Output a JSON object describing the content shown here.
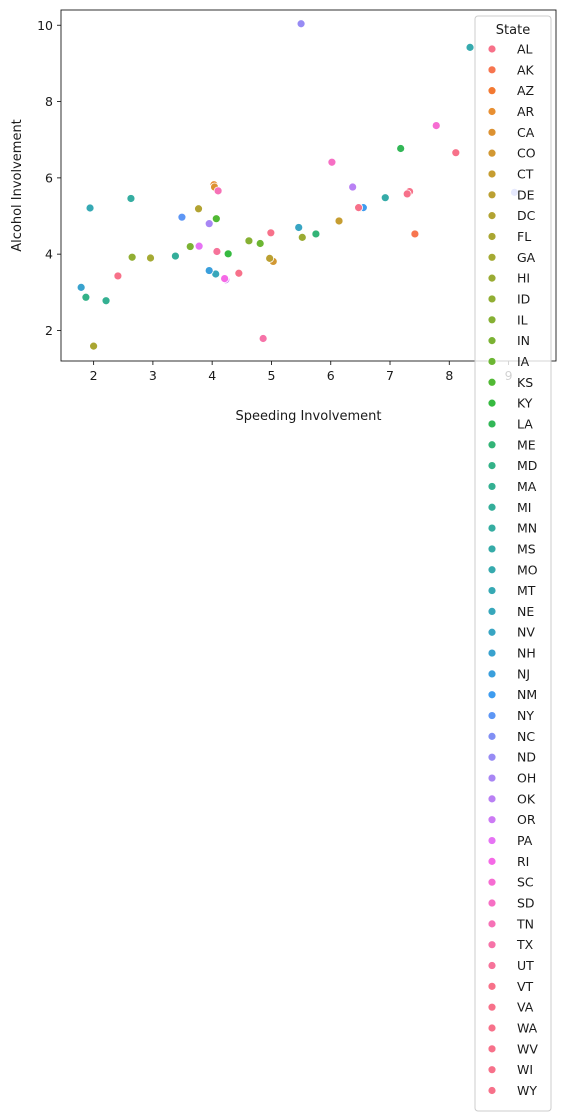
{
  "chart_data": {
    "type": "scatter",
    "title": "",
    "xlabel": "Speeding Involvement",
    "ylabel": "Alcohol Involvement",
    "xlim": [
      1.45,
      9.8
    ],
    "ylim": [
      1.2,
      10.4
    ],
    "x_ticks": [
      2,
      3,
      4,
      5,
      6,
      7,
      8,
      9
    ],
    "y_ticks": [
      2,
      4,
      6,
      8,
      10
    ],
    "grid": false,
    "legend": {
      "title": "State",
      "placement": "right",
      "entries": [
        "AL",
        "AK",
        "AZ",
        "AR",
        "CA",
        "CO",
        "CT",
        "DE",
        "DC",
        "FL",
        "GA",
        "HI",
        "ID",
        "IL",
        "IN",
        "IA",
        "KS",
        "KY",
        "LA",
        "ME",
        "MD",
        "MA",
        "MI",
        "MN",
        "MS",
        "MO",
        "MT",
        "NE",
        "NV",
        "NH",
        "NJ",
        "NM",
        "NY",
        "NC",
        "ND",
        "OH",
        "OK",
        "OR",
        "PA",
        "RI",
        "SC",
        "SD",
        "TN",
        "TX",
        "UT",
        "VT",
        "VA",
        "WA",
        "WV",
        "WI",
        "WY"
      ],
      "colors": [
        "#f77189",
        "#f7754f",
        "#f37932",
        "#e88f32",
        "#dc9131",
        "#d29832",
        "#c69d31",
        "#bba032",
        "#b2a332",
        "#aaa632",
        "#a5aa33",
        "#9aab33",
        "#91ae33",
        "#86b033",
        "#7bb233",
        "#6cb633",
        "#51b934",
        "#36ba40",
        "#32b757",
        "#33b477",
        "#33b288",
        "#34b092",
        "#34ae9a",
        "#35ada1",
        "#35aba8",
        "#36aaae",
        "#36a9b4",
        "#37a7bb",
        "#38a5c3",
        "#39a2ce",
        "#3a9fdc",
        "#3e9cef",
        "#5d96f5",
        "#818ff4",
        "#978bf4",
        "#a886f4",
        "#b980f4",
        "#cc7af4",
        "#e673f4",
        "#f569e6",
        "#f66cd2",
        "#f66fc4",
        "#f671b6",
        "#f673a8",
        "#f6739a",
        "#f77189",
        "#f7718a",
        "#f7718a",
        "#f7718a",
        "#f7718a",
        "#f7718a"
      ]
    },
    "points": [
      {
        "x": 7.33,
        "y": 5.64,
        "state": "AL"
      },
      {
        "x": 7.42,
        "y": 4.53,
        "state": "AK"
      },
      {
        "x": 6.51,
        "y": 5.21,
        "state": "AZ"
      },
      {
        "x": 4.03,
        "y": 5.82,
        "state": "AR"
      },
      {
        "x": 4.04,
        "y": 5.76,
        "state": "CA"
      },
      {
        "x": 5.03,
        "y": 3.81,
        "state": "CO"
      },
      {
        "x": 6.14,
        "y": 4.87,
        "state": "CT"
      },
      {
        "x": 4.97,
        "y": 3.89,
        "state": "DE"
      },
      {
        "x": 3.77,
        "y": 5.19,
        "state": "DC"
      },
      {
        "x": 2.0,
        "y": 1.59,
        "state": "FL"
      },
      {
        "x": 2.96,
        "y": 3.9,
        "state": "GA"
      },
      {
        "x": 5.52,
        "y": 4.44,
        "state": "HI"
      },
      {
        "x": 2.65,
        "y": 3.92,
        "state": "ID"
      },
      {
        "x": 4.62,
        "y": 4.35,
        "state": "IL"
      },
      {
        "x": 3.63,
        "y": 4.2,
        "state": "IN"
      },
      {
        "x": 4.81,
        "y": 4.28,
        "state": "IA"
      },
      {
        "x": 4.07,
        "y": 4.93,
        "state": "KS"
      },
      {
        "x": 4.27,
        "y": 4.01,
        "state": "KY"
      },
      {
        "x": 7.18,
        "y": 6.77,
        "state": "LA"
      },
      {
        "x": 5.75,
        "y": 4.53,
        "state": "ME"
      },
      {
        "x": 1.87,
        "y": 2.87,
        "state": "MD"
      },
      {
        "x": 2.21,
        "y": 2.78,
        "state": "MA"
      },
      {
        "x": 3.38,
        "y": 3.95,
        "state": "MI"
      },
      {
        "x": 2.63,
        "y": 5.46,
        "state": "MN"
      },
      {
        "x": 6.92,
        "y": 5.48,
        "state": "MS"
      },
      {
        "x": 8.35,
        "y": 9.42,
        "state": "MO"
      },
      {
        "x": 1.94,
        "y": 5.21,
        "state": "MT"
      },
      {
        "x": 4.06,
        "y": 3.48,
        "state": "NE"
      },
      {
        "x": 5.46,
        "y": 4.7,
        "state": "NV"
      },
      {
        "x": 1.79,
        "y": 3.13,
        "state": "NH"
      },
      {
        "x": 3.95,
        "y": 3.57,
        "state": "NJ"
      },
      {
        "x": 6.55,
        "y": 5.22,
        "state": "NM"
      },
      {
        "x": 3.49,
        "y": 4.97,
        "state": "NY"
      },
      {
        "x": 9.1,
        "y": 5.62,
        "state": "NC"
      },
      {
        "x": 5.5,
        "y": 10.04,
        "state": "ND"
      },
      {
        "x": 3.95,
        "y": 4.8,
        "state": "OH"
      },
      {
        "x": 6.37,
        "y": 5.76,
        "state": "OK"
      },
      {
        "x": 4.23,
        "y": 3.33,
        "state": "OR"
      },
      {
        "x": 3.78,
        "y": 4.21,
        "state": "PA"
      },
      {
        "x": 4.21,
        "y": 3.36,
        "state": "RI"
      },
      {
        "x": 7.78,
        "y": 7.37,
        "state": "SC"
      },
      {
        "x": 6.02,
        "y": 6.41,
        "state": "SD"
      },
      {
        "x": 4.1,
        "y": 5.66,
        "state": "TN"
      },
      {
        "x": 4.86,
        "y": 1.79,
        "state": "TX"
      },
      {
        "x": 4.08,
        "y": 4.07,
        "state": "UT"
      },
      {
        "x": 2.41,
        "y": 3.43,
        "state": "VT"
      },
      {
        "x": 4.45,
        "y": 3.5,
        "state": "VA"
      },
      {
        "x": 4.99,
        "y": 4.56,
        "state": "WA"
      },
      {
        "x": 8.11,
        "y": 6.66,
        "state": "WV"
      },
      {
        "x": 7.29,
        "y": 5.58,
        "state": "WI"
      },
      {
        "x": 6.47,
        "y": 5.22,
        "state": "WY"
      }
    ]
  }
}
